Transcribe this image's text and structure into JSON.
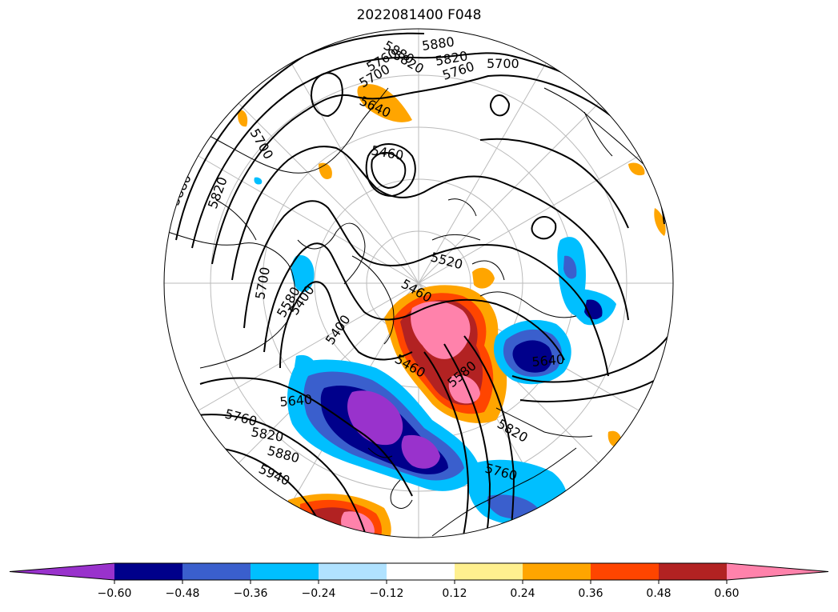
{
  "title": "2022081400 F048",
  "projection": "north-polar-stereographic",
  "colorbar": {
    "extend": "both",
    "colors": [
      "#9932cc",
      "#00008b",
      "#3a5fcd",
      "#00bfff",
      "#b0e2ff",
      "#ffffff",
      "#fff08f",
      "#ffa500",
      "#ff4500",
      "#b22222",
      "#ff82ab"
    ],
    "tick_labels": [
      "−0.60",
      "−0.48",
      "−0.36",
      "−0.24",
      "−0.12",
      "0.12",
      "0.24",
      "0.36",
      "0.48",
      "0.60"
    ]
  },
  "contour_labels": [
    {
      "text": "5880"
    },
    {
      "text": "5820"
    },
    {
      "text": "5760"
    },
    {
      "text": "5700"
    },
    {
      "text": "5640"
    },
    {
      "text": "5880"
    },
    {
      "text": "5820"
    },
    {
      "text": "5760"
    },
    {
      "text": "5700"
    },
    {
      "text": "5460"
    },
    {
      "text": "5880"
    },
    {
      "text": "5820"
    },
    {
      "text": "5700"
    },
    {
      "text": "5520"
    },
    {
      "text": "5460"
    },
    {
      "text": "5580"
    },
    {
      "text": "5400"
    },
    {
      "text": "5460"
    },
    {
      "text": "5400"
    },
    {
      "text": "5640"
    },
    {
      "text": "5760"
    },
    {
      "text": "5820"
    },
    {
      "text": "5880"
    },
    {
      "text": "5940"
    },
    {
      "text": "5580"
    },
    {
      "text": "5820"
    },
    {
      "text": "5760"
    },
    {
      "text": "5640"
    },
    {
      "text": "5700"
    }
  ]
}
